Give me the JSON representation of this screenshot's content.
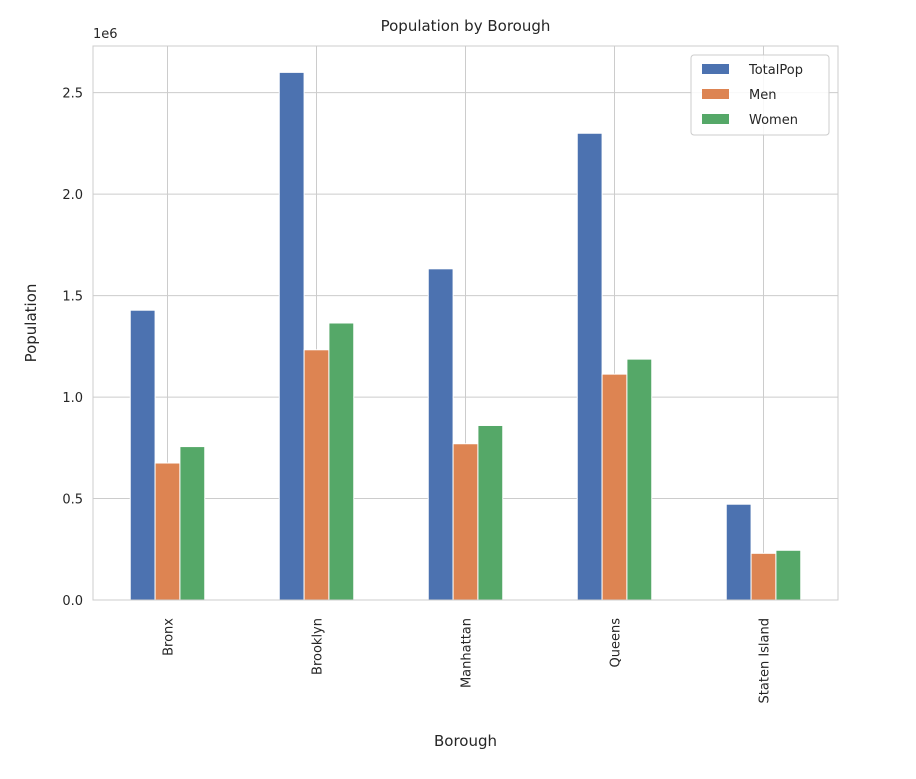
{
  "chart_data": {
    "type": "bar",
    "title": "Population by Borough",
    "xlabel": "Borough",
    "ylabel": "Population",
    "y_offset_label": "1e6",
    "categories": [
      "Bronx",
      "Brooklyn",
      "Manhattan",
      "Queens",
      "Staten Island"
    ],
    "series": [
      {
        "name": "TotalPop",
        "color": "#4c72b0",
        "values": [
          1428000,
          2600000,
          1632000,
          2300000,
          472000
        ]
      },
      {
        "name": "Men",
        "color": "#dd8452",
        "values": [
          675000,
          1233000,
          770000,
          1113000,
          230000
        ]
      },
      {
        "name": "Women",
        "color": "#55a868",
        "values": [
          756000,
          1365000,
          860000,
          1187000,
          245000
        ]
      }
    ],
    "ylim": [
      0,
      2730000
    ],
    "yticks": [
      0,
      500000,
      1000000,
      1500000,
      2000000,
      2500000
    ],
    "ytick_labels": [
      "0.0",
      "0.5",
      "1.0",
      "1.5",
      "2.0",
      "2.5"
    ],
    "grid": true,
    "legend_position": "top-right",
    "xtick_rotation": "vertical"
  }
}
